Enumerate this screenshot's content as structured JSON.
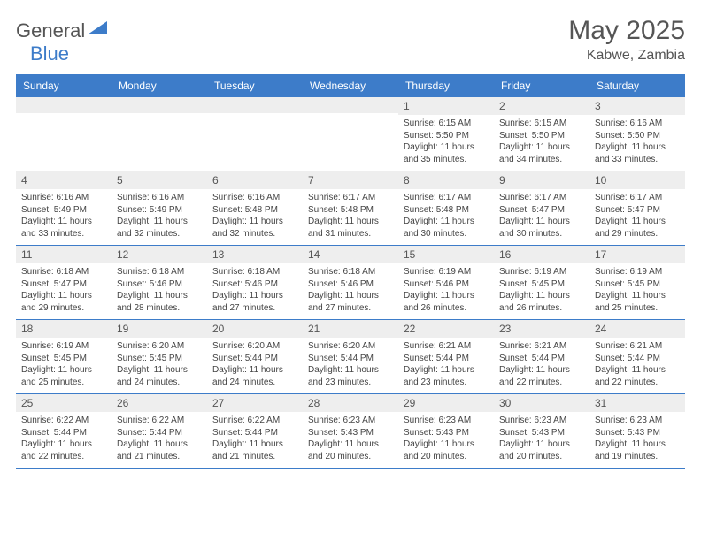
{
  "logo": {
    "word1": "General",
    "word2": "Blue"
  },
  "header": {
    "month": "May 2025",
    "location": "Kabwe, Zambia"
  },
  "colors": {
    "header_bg": "#3d7cc9",
    "header_text": "#ffffff",
    "daynum_bg": "#eeeeee",
    "border": "#3d7cc9",
    "text": "#444444",
    "title": "#555555"
  },
  "day_names": [
    "Sunday",
    "Monday",
    "Tuesday",
    "Wednesday",
    "Thursday",
    "Friday",
    "Saturday"
  ],
  "weeks": [
    [
      null,
      null,
      null,
      null,
      {
        "n": "1",
        "sunrise": "6:15 AM",
        "sunset": "5:50 PM",
        "dl": "11 hours and 35 minutes."
      },
      {
        "n": "2",
        "sunrise": "6:15 AM",
        "sunset": "5:50 PM",
        "dl": "11 hours and 34 minutes."
      },
      {
        "n": "3",
        "sunrise": "6:16 AM",
        "sunset": "5:50 PM",
        "dl": "11 hours and 33 minutes."
      }
    ],
    [
      {
        "n": "4",
        "sunrise": "6:16 AM",
        "sunset": "5:49 PM",
        "dl": "11 hours and 33 minutes."
      },
      {
        "n": "5",
        "sunrise": "6:16 AM",
        "sunset": "5:49 PM",
        "dl": "11 hours and 32 minutes."
      },
      {
        "n": "6",
        "sunrise": "6:16 AM",
        "sunset": "5:48 PM",
        "dl": "11 hours and 32 minutes."
      },
      {
        "n": "7",
        "sunrise": "6:17 AM",
        "sunset": "5:48 PM",
        "dl": "11 hours and 31 minutes."
      },
      {
        "n": "8",
        "sunrise": "6:17 AM",
        "sunset": "5:48 PM",
        "dl": "11 hours and 30 minutes."
      },
      {
        "n": "9",
        "sunrise": "6:17 AM",
        "sunset": "5:47 PM",
        "dl": "11 hours and 30 minutes."
      },
      {
        "n": "10",
        "sunrise": "6:17 AM",
        "sunset": "5:47 PM",
        "dl": "11 hours and 29 minutes."
      }
    ],
    [
      {
        "n": "11",
        "sunrise": "6:18 AM",
        "sunset": "5:47 PM",
        "dl": "11 hours and 29 minutes."
      },
      {
        "n": "12",
        "sunrise": "6:18 AM",
        "sunset": "5:46 PM",
        "dl": "11 hours and 28 minutes."
      },
      {
        "n": "13",
        "sunrise": "6:18 AM",
        "sunset": "5:46 PM",
        "dl": "11 hours and 27 minutes."
      },
      {
        "n": "14",
        "sunrise": "6:18 AM",
        "sunset": "5:46 PM",
        "dl": "11 hours and 27 minutes."
      },
      {
        "n": "15",
        "sunrise": "6:19 AM",
        "sunset": "5:46 PM",
        "dl": "11 hours and 26 minutes."
      },
      {
        "n": "16",
        "sunrise": "6:19 AM",
        "sunset": "5:45 PM",
        "dl": "11 hours and 26 minutes."
      },
      {
        "n": "17",
        "sunrise": "6:19 AM",
        "sunset": "5:45 PM",
        "dl": "11 hours and 25 minutes."
      }
    ],
    [
      {
        "n": "18",
        "sunrise": "6:19 AM",
        "sunset": "5:45 PM",
        "dl": "11 hours and 25 minutes."
      },
      {
        "n": "19",
        "sunrise": "6:20 AM",
        "sunset": "5:45 PM",
        "dl": "11 hours and 24 minutes."
      },
      {
        "n": "20",
        "sunrise": "6:20 AM",
        "sunset": "5:44 PM",
        "dl": "11 hours and 24 minutes."
      },
      {
        "n": "21",
        "sunrise": "6:20 AM",
        "sunset": "5:44 PM",
        "dl": "11 hours and 23 minutes."
      },
      {
        "n": "22",
        "sunrise": "6:21 AM",
        "sunset": "5:44 PM",
        "dl": "11 hours and 23 minutes."
      },
      {
        "n": "23",
        "sunrise": "6:21 AM",
        "sunset": "5:44 PM",
        "dl": "11 hours and 22 minutes."
      },
      {
        "n": "24",
        "sunrise": "6:21 AM",
        "sunset": "5:44 PM",
        "dl": "11 hours and 22 minutes."
      }
    ],
    [
      {
        "n": "25",
        "sunrise": "6:22 AM",
        "sunset": "5:44 PM",
        "dl": "11 hours and 22 minutes."
      },
      {
        "n": "26",
        "sunrise": "6:22 AM",
        "sunset": "5:44 PM",
        "dl": "11 hours and 21 minutes."
      },
      {
        "n": "27",
        "sunrise": "6:22 AM",
        "sunset": "5:44 PM",
        "dl": "11 hours and 21 minutes."
      },
      {
        "n": "28",
        "sunrise": "6:23 AM",
        "sunset": "5:43 PM",
        "dl": "11 hours and 20 minutes."
      },
      {
        "n": "29",
        "sunrise": "6:23 AM",
        "sunset": "5:43 PM",
        "dl": "11 hours and 20 minutes."
      },
      {
        "n": "30",
        "sunrise": "6:23 AM",
        "sunset": "5:43 PM",
        "dl": "11 hours and 20 minutes."
      },
      {
        "n": "31",
        "sunrise": "6:23 AM",
        "sunset": "5:43 PM",
        "dl": "11 hours and 19 minutes."
      }
    ]
  ],
  "labels": {
    "sunrise": "Sunrise:",
    "sunset": "Sunset:",
    "daylight": "Daylight:"
  }
}
